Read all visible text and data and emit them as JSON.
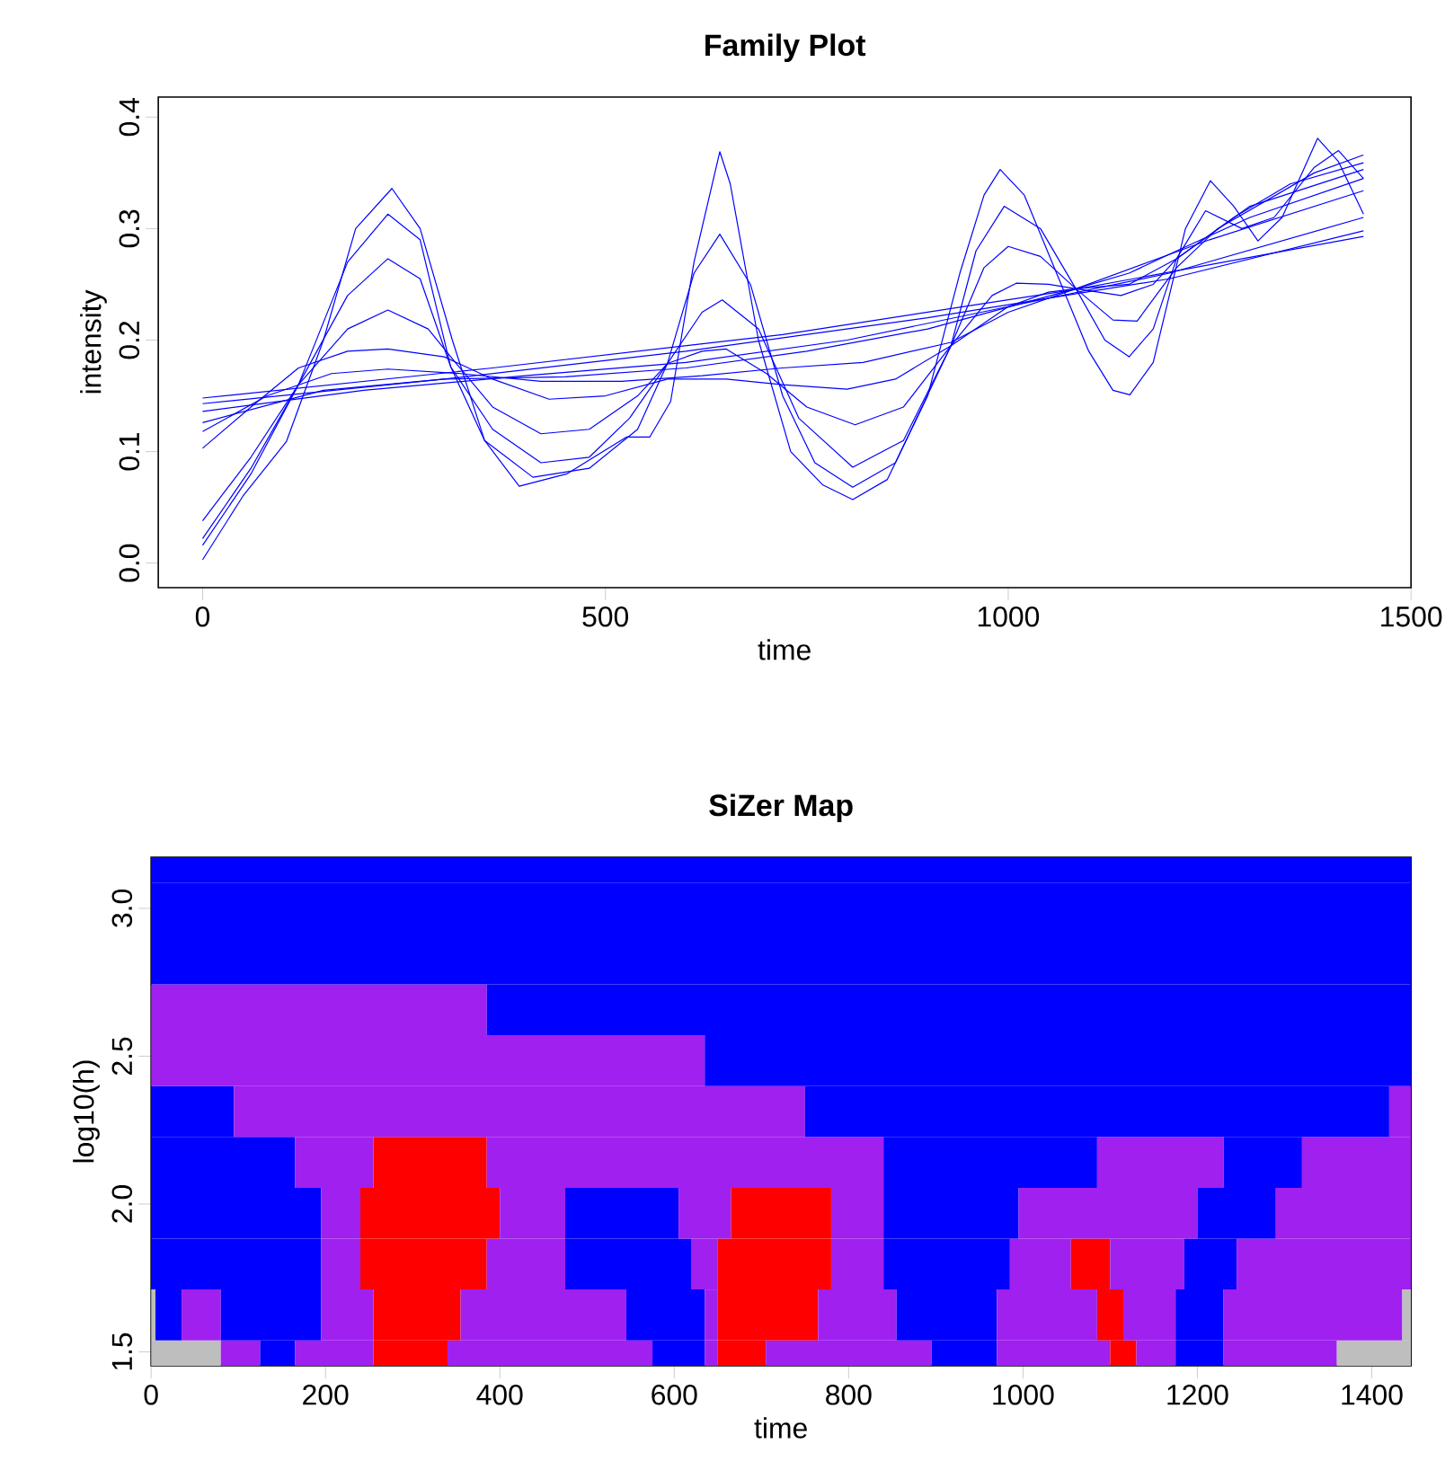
{
  "chart_data": [
    {
      "type": "line",
      "title": "Family Plot",
      "xlabel": "time",
      "ylabel": "intensity",
      "xlim": [
        -55,
        1500
      ],
      "ylim": [
        -0.022,
        0.418
      ],
      "xticks": [
        0,
        500,
        1000,
        1500
      ],
      "yticks": [
        {
          "value": 0,
          "label": "0.0"
        },
        {
          "value": 0.1,
          "label": "0.1"
        },
        {
          "value": 0.2,
          "label": "0.2"
        },
        {
          "value": 0.3,
          "label": "0.3"
        },
        {
          "value": 0.4,
          "label": "0.4"
        }
      ],
      "series": [
        {
          "color": "#0000ff",
          "x": [
            0,
            50,
            104,
            150,
            190,
            235,
            270,
            310,
            350,
            393,
            452,
            526,
            555,
            581,
            610,
            642,
            655,
            690,
            730,
            770,
            807,
            850,
            900,
            940,
            970,
            990,
            1020,
            1060,
            1100,
            1130,
            1151,
            1180,
            1220,
            1251,
            1280,
            1310,
            1340,
            1384,
            1410,
            1441
          ],
          "values": [
            0.003,
            0.06,
            0.109,
            0.2,
            0.3,
            0.336,
            0.3,
            0.2,
            0.11,
            0.069,
            0.08,
            0.113,
            0.113,
            0.145,
            0.27,
            0.369,
            0.34,
            0.2,
            0.1,
            0.07,
            0.057,
            0.075,
            0.15,
            0.26,
            0.33,
            0.353,
            0.33,
            0.26,
            0.19,
            0.155,
            0.151,
            0.18,
            0.3,
            0.343,
            0.32,
            0.289,
            0.31,
            0.381,
            0.36,
            0.313
          ]
        },
        {
          "color": "#0000ff",
          "x": [
            0,
            60,
            119,
            180,
            230,
            270,
            308,
            350,
            410,
            480,
            540,
            577,
            610,
            642,
            680,
            720,
            760,
            807,
            860,
            929,
            960,
            995,
            1040,
            1084,
            1120,
            1150,
            1180,
            1209,
            1245,
            1290,
            1330,
            1380,
            1410,
            1441
          ],
          "values": [
            0.016,
            0.08,
            0.16,
            0.27,
            0.313,
            0.29,
            0.176,
            0.11,
            0.077,
            0.085,
            0.12,
            0.179,
            0.26,
            0.295,
            0.25,
            0.15,
            0.09,
            0.068,
            0.09,
            0.195,
            0.28,
            0.32,
            0.3,
            0.246,
            0.2,
            0.185,
            0.21,
            0.273,
            0.316,
            0.3,
            0.31,
            0.355,
            0.37,
            0.345
          ]
        },
        {
          "color": "#0000ff",
          "x": [
            0,
            60,
            119,
            180,
            230,
            270,
            308,
            360,
            420,
            480,
            530,
            577,
            620,
            645,
            690,
            740,
            807,
            870,
            929,
            970,
            1000,
            1040,
            1084,
            1130,
            1160,
            1209,
            1260,
            1320,
            1380,
            1441
          ],
          "values": [
            0.022,
            0.085,
            0.16,
            0.24,
            0.273,
            0.255,
            0.176,
            0.12,
            0.09,
            0.095,
            0.13,
            0.179,
            0.225,
            0.236,
            0.21,
            0.13,
            0.086,
            0.11,
            0.195,
            0.265,
            0.284,
            0.275,
            0.246,
            0.218,
            0.217,
            0.265,
            0.3,
            0.325,
            0.35,
            0.366
          ]
        },
        {
          "color": "#0000ff",
          "x": [
            0,
            60,
            119,
            180,
            230,
            280,
            308,
            360,
            420,
            480,
            540,
            577,
            620,
            650,
            700,
            750,
            810,
            870,
            929,
            980,
            1010,
            1050,
            1084,
            1140,
            1180,
            1209,
            1280,
            1350,
            1441
          ],
          "values": [
            0.038,
            0.095,
            0.16,
            0.21,
            0.227,
            0.21,
            0.185,
            0.14,
            0.116,
            0.12,
            0.15,
            0.179,
            0.19,
            0.192,
            0.17,
            0.14,
            0.124,
            0.14,
            0.195,
            0.24,
            0.251,
            0.25,
            0.246,
            0.24,
            0.25,
            0.273,
            0.31,
            0.34,
            0.359
          ]
        },
        {
          "color": "#0000ff",
          "x": [
            0,
            60,
            119,
            180,
            230,
            300,
            360,
            430,
            500,
            577,
            650,
            720,
            800,
            860,
            929,
            1000,
            1050,
            1084,
            1150,
            1209,
            1300,
            1441
          ],
          "values": [
            0.103,
            0.14,
            0.175,
            0.19,
            0.192,
            0.185,
            0.165,
            0.147,
            0.15,
            0.165,
            0.165,
            0.16,
            0.156,
            0.165,
            0.195,
            0.23,
            0.243,
            0.246,
            0.25,
            0.273,
            0.32,
            0.353
          ]
        },
        {
          "color": "#0000ff",
          "x": [
            0,
            80,
            160,
            230,
            320,
            420,
            520,
            620,
            720,
            820,
            929,
            1000,
            1084,
            1150,
            1209,
            1300,
            1441
          ],
          "values": [
            0.118,
            0.15,
            0.17,
            0.174,
            0.17,
            0.163,
            0.163,
            0.168,
            0.175,
            0.18,
            0.198,
            0.225,
            0.246,
            0.26,
            0.28,
            0.31,
            0.345
          ]
        },
        {
          "color": "#0000ff",
          "x": [
            0,
            150,
            300,
            450,
            600,
            750,
            900,
            1084,
            1250,
            1441
          ],
          "values": [
            0.126,
            0.155,
            0.165,
            0.167,
            0.175,
            0.19,
            0.21,
            0.246,
            0.29,
            0.334
          ]
        },
        {
          "color": "#0000ff",
          "x": [
            0,
            200,
            400,
            600,
            800,
            1000,
            1200,
            1441
          ],
          "values": [
            0.136,
            0.155,
            0.168,
            0.18,
            0.2,
            0.23,
            0.26,
            0.31
          ]
        },
        {
          "color": "#0000ff",
          "x": [
            0,
            300,
            600,
            900,
            1200,
            1441
          ],
          "values": [
            0.143,
            0.165,
            0.19,
            0.22,
            0.255,
            0.298
          ]
        },
        {
          "color": "#0000ff",
          "x": [
            0,
            360,
            720,
            1080,
            1441
          ],
          "values": [
            0.148,
            0.175,
            0.205,
            0.245,
            0.293
          ]
        }
      ]
    },
    {
      "type": "bar",
      "orientation": "horizontal",
      "stacked": true,
      "title": "SiZer Map",
      "xlabel": "time",
      "ylabel": "log10(h)",
      "x": [
        1.453,
        1.625,
        1.797,
        1.969,
        2.141,
        2.313,
        2.485,
        2.657,
        2.829,
        3.001,
        3.173
      ],
      "xlim": [
        0,
        1445
      ],
      "ylim": [
        1.453,
        3.173
      ],
      "xticks": [
        0,
        200,
        400,
        600,
        800,
        1000,
        1200,
        1400
      ],
      "yticks": [
        {
          "value": 1.5,
          "label": "1.5"
        },
        {
          "value": 2.0,
          "label": "2.0"
        },
        {
          "value": 2.5,
          "label": "2.5"
        },
        {
          "value": 3.0,
          "label": "3.0"
        }
      ],
      "series": [
        {
          "values": [
            80,
            5,
            195,
            195,
            165,
            95,
            635,
            385,
            1445,
            1445,
            1445
          ],
          "colors": [
            "#bebebe",
            "#bebebe",
            "#0000ff",
            "#0000ff",
            "#0000ff",
            "#0000ff",
            "#a020f0",
            "#a020f0",
            "#0000ff",
            "#0000ff",
            "#0000ff"
          ]
        },
        {
          "values": [
            45,
            30,
            45,
            45,
            90,
            655,
            810,
            1060,
            null,
            null,
            null
          ],
          "colors": [
            "#a020f0",
            "#0000ff",
            "#a020f0",
            "#a020f0",
            "#a020f0",
            "#a020f0",
            "#0000ff",
            "#0000ff",
            null,
            null,
            null
          ]
        },
        {
          "values": [
            40,
            45,
            145,
            160,
            130,
            670,
            null,
            null,
            null,
            null,
            null
          ],
          "colors": [
            "#0000ff",
            "#a020f0",
            "#ff0000",
            "#ff0000",
            "#ff0000",
            "#0000ff",
            null,
            null,
            null,
            null,
            null
          ]
        },
        {
          "values": [
            90,
            115,
            90,
            75,
            455,
            25,
            null,
            null,
            null,
            null,
            null
          ],
          "colors": [
            "#a020f0",
            "#0000ff",
            "#a020f0",
            "#a020f0",
            "#a020f0",
            "#a020f0",
            null,
            null,
            null,
            null,
            null
          ]
        },
        {
          "values": [
            85,
            60,
            145,
            130,
            245,
            null,
            null,
            null,
            null,
            null,
            null
          ],
          "colors": [
            "#ff0000",
            "#a020f0",
            "#0000ff",
            "#0000ff",
            "#0000ff",
            null,
            null,
            null,
            null,
            null,
            null
          ]
        },
        {
          "values": [
            235,
            100,
            30,
            60,
            145,
            null,
            null,
            null,
            null,
            null,
            null
          ],
          "colors": [
            "#a020f0",
            "#ff0000",
            "#a020f0",
            "#a020f0",
            "#a020f0",
            null,
            null,
            null,
            null,
            null,
            null
          ]
        },
        {
          "values": [
            60,
            190,
            130,
            115,
            90,
            null,
            null,
            null,
            null,
            null,
            null
          ],
          "colors": [
            "#0000ff",
            "#a020f0",
            "#ff0000",
            "#ff0000",
            "#0000ff",
            null,
            null,
            null,
            null,
            null,
            null
          ]
        },
        {
          "values": [
            15,
            90,
            60,
            60,
            125,
            null,
            null,
            null,
            null,
            null,
            null
          ],
          "colors": [
            "#a020f0",
            "#0000ff",
            "#a020f0",
            "#a020f0",
            "#a020f0",
            null,
            null,
            null,
            null,
            null,
            null
          ]
        },
        {
          "values": [
            55,
            15,
            145,
            155,
            null,
            null,
            null,
            null,
            null,
            null,
            null
          ],
          "colors": [
            "#ff0000",
            "#a020f0",
            "#0000ff",
            "#0000ff",
            null,
            null,
            null,
            null,
            null,
            null,
            null
          ]
        },
        {
          "values": [
            190,
            115,
            70,
            205,
            null,
            null,
            null,
            null,
            null,
            null,
            null
          ],
          "colors": [
            "#a020f0",
            "#ff0000",
            "#a020f0",
            "#a020f0",
            null,
            null,
            null,
            null,
            null,
            null,
            null
          ]
        },
        {
          "values": [
            75,
            90,
            45,
            90,
            null,
            null,
            null,
            null,
            null,
            null,
            null
          ],
          "colors": [
            "#0000ff",
            "#a020f0",
            "#ff0000",
            "#0000ff",
            null,
            null,
            null,
            null,
            null,
            null,
            null
          ]
        },
        {
          "values": [
            130,
            115,
            85,
            155,
            null,
            null,
            null,
            null,
            null,
            null,
            null
          ],
          "colors": [
            "#a020f0",
            "#0000ff",
            "#a020f0",
            "#a020f0",
            null,
            null,
            null,
            null,
            null,
            null,
            null
          ]
        },
        {
          "values": [
            30,
            115,
            60,
            null,
            null,
            null,
            null,
            null,
            null,
            null,
            null
          ],
          "colors": [
            "#ff0000",
            "#a020f0",
            "#0000ff",
            null,
            null,
            null,
            null,
            null,
            null,
            null,
            null
          ]
        },
        {
          "values": [
            45,
            30,
            200,
            null,
            null,
            null,
            null,
            null,
            null,
            null,
            null
          ],
          "colors": [
            "#a020f0",
            "#ff0000",
            "#a020f0",
            null,
            null,
            null,
            null,
            null,
            null,
            null,
            null
          ]
        },
        {
          "values": [
            55,
            60,
            null,
            null,
            null,
            null,
            null,
            null,
            null,
            null,
            null
          ],
          "colors": [
            "#0000ff",
            "#a020f0",
            null,
            null,
            null,
            null,
            null,
            null,
            null,
            null,
            null
          ]
        },
        {
          "values": [
            130,
            55,
            null,
            null,
            null,
            null,
            null,
            null,
            null,
            null,
            null
          ],
          "colors": [
            "#a020f0",
            "#0000ff",
            null,
            null,
            null,
            null,
            null,
            null,
            null,
            null,
            null
          ]
        },
        {
          "values": [
            85,
            205,
            null,
            null,
            null,
            null,
            null,
            null,
            null,
            null,
            null
          ],
          "colors": [
            "#bebebe",
            "#a020f0",
            null,
            null,
            null,
            null,
            null,
            null,
            null,
            null,
            null
          ]
        },
        {
          "values": [
            null,
            10,
            null,
            null,
            null,
            null,
            null,
            null,
            null,
            null,
            null
          ],
          "colors": [
            null,
            "#bebebe",
            null,
            null,
            null,
            null,
            null,
            null,
            null,
            null,
            null
          ]
        }
      ]
    }
  ]
}
